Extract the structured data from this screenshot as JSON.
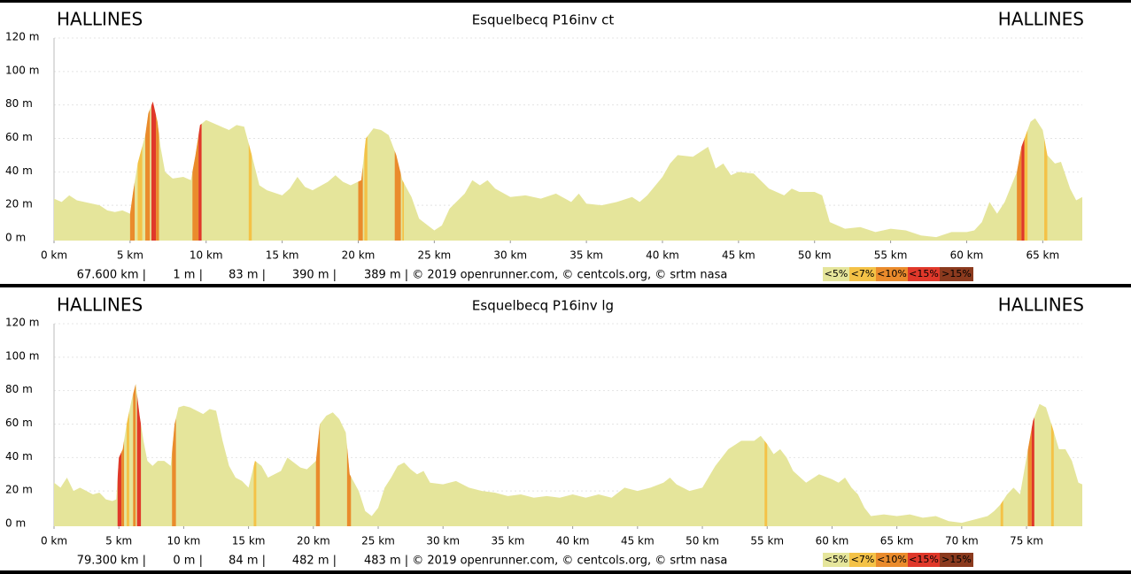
{
  "chart_data": [
    {
      "type": "area",
      "title": "Esquelbecq P16inv ct",
      "start_label": "HALLINES",
      "end_label": "HALLINES",
      "color": "#e5e59b",
      "x": [
        0,
        0.5,
        1,
        1.5,
        2,
        3,
        3.5,
        4,
        4.5,
        5,
        5.2,
        5.5,
        6,
        6.2,
        6.5,
        6.8,
        7,
        7.3,
        7.8,
        8.5,
        9,
        9.3,
        9.6,
        10,
        10.5,
        11,
        11.5,
        12,
        12.5,
        13,
        13.5,
        14,
        15,
        15.5,
        16,
        16.5,
        17,
        18,
        18.5,
        19,
        19.5,
        20.2,
        20.5,
        21,
        21.5,
        22,
        22.5,
        22.9,
        23.5,
        24,
        25,
        25.5,
        26,
        27,
        27.5,
        28,
        28.5,
        29,
        30,
        31,
        32,
        33,
        34,
        34.5,
        35,
        36,
        37,
        38,
        38.5,
        39,
        40,
        40.5,
        41,
        42,
        43,
        43.5,
        44,
        44.5,
        45,
        46,
        47,
        48,
        48.5,
        49,
        50,
        50.5,
        51,
        52,
        53,
        54,
        55,
        56,
        57,
        58,
        59,
        60,
        60.5,
        61,
        61.5,
        62,
        62.5,
        63.3,
        63.6,
        64.2,
        64.5,
        65,
        65.3,
        65.8,
        66.2,
        66.8,
        67.2,
        67.6
      ],
      "values": [
        24,
        22,
        26,
        23,
        22,
        20,
        17,
        16,
        17,
        15,
        28,
        45,
        62,
        75,
        82,
        70,
        55,
        40,
        36,
        37,
        35,
        50,
        68,
        71,
        69,
        67,
        65,
        68,
        67,
        50,
        32,
        29,
        26,
        30,
        37,
        31,
        29,
        34,
        38,
        34,
        32,
        35,
        60,
        66,
        65,
        62,
        50,
        35,
        25,
        12,
        5,
        8,
        18,
        27,
        35,
        32,
        35,
        30,
        25,
        26,
        24,
        27,
        22,
        27,
        21,
        20,
        22,
        25,
        22,
        26,
        37,
        45,
        50,
        49,
        55,
        42,
        45,
        38,
        40,
        39,
        30,
        26,
        30,
        28,
        28,
        26,
        10,
        6,
        7,
        4,
        6,
        5,
        2,
        1,
        4,
        4,
        5,
        10,
        22,
        15,
        22,
        40,
        55,
        70,
        72,
        65,
        50,
        45,
        46,
        30,
        23,
        25
      ],
      "xlim": [
        0,
        67.6
      ],
      "ylim": [
        0,
        120
      ],
      "xticks": [
        {
          "value": 0,
          "label": "0 km"
        },
        {
          "value": 5,
          "label": "5 km"
        },
        {
          "value": 10,
          "label": "10 km"
        },
        {
          "value": 15,
          "label": "15 km"
        },
        {
          "value": 20,
          "label": "20 km"
        },
        {
          "value": 25,
          "label": "25 km"
        },
        {
          "value": 30,
          "label": "30 km"
        },
        {
          "value": 35,
          "label": "35 km"
        },
        {
          "value": 40,
          "label": "40 km"
        },
        {
          "value": 45,
          "label": "45 km"
        },
        {
          "value": 50,
          "label": "50 km"
        },
        {
          "value": 55,
          "label": "55 km"
        },
        {
          "value": 60,
          "label": "60 km"
        },
        {
          "value": 65,
          "label": "65 km"
        }
      ],
      "yticks": [
        {
          "value": 0,
          "label": "0 m"
        },
        {
          "value": 20,
          "label": "20 m"
        },
        {
          "value": 40,
          "label": "40 m"
        },
        {
          "value": 60,
          "label": "60 m"
        },
        {
          "value": 80,
          "label": "80 m"
        },
        {
          "value": 100,
          "label": "100 m"
        },
        {
          "value": 120,
          "label": "120 m"
        }
      ],
      "grid": true,
      "grade_bands": [
        {
          "x0": 5.0,
          "x1": 5.3,
          "level": 2
        },
        {
          "x0": 5.5,
          "x1": 5.8,
          "level": 1
        },
        {
          "x0": 6.0,
          "x1": 6.3,
          "level": 2
        },
        {
          "x0": 6.4,
          "x1": 6.7,
          "level": 3
        },
        {
          "x0": 6.7,
          "x1": 6.9,
          "level": 2
        },
        {
          "x0": 9.1,
          "x1": 9.5,
          "level": 2
        },
        {
          "x0": 9.5,
          "x1": 9.7,
          "level": 3
        },
        {
          "x0": 12.8,
          "x1": 13.0,
          "level": 1
        },
        {
          "x0": 20.0,
          "x1": 20.3,
          "level": 2
        },
        {
          "x0": 20.4,
          "x1": 20.6,
          "level": 1
        },
        {
          "x0": 22.4,
          "x1": 22.8,
          "level": 2
        },
        {
          "x0": 22.9,
          "x1": 23.0,
          "level": 1
        },
        {
          "x0": 63.3,
          "x1": 63.6,
          "level": 2
        },
        {
          "x0": 63.6,
          "x1": 63.8,
          "level": 3
        },
        {
          "x0": 63.8,
          "x1": 64.0,
          "level": 1
        },
        {
          "x0": 65.1,
          "x1": 65.3,
          "level": 1
        }
      ],
      "legend": [
        {
          "label": "<5%",
          "color": "#e5e59b"
        },
        {
          "label": "<7%",
          "color": "#f4c247"
        },
        {
          "label": "<10%",
          "color": "#ea8b2c"
        },
        {
          "label": "<15%",
          "color": "#e0382a"
        },
        {
          "label": ">15%",
          "color": "#8b3a1e"
        }
      ],
      "footer": [
        "67.600 km |",
        "1 m |",
        "83 m |",
        "390 m |",
        "389 m | © 2019 openrunner.com, © centcols.org, © srtm nasa"
      ]
    },
    {
      "type": "area",
      "title": "Esquelbecq P16inv lg",
      "start_label": "HALLINES",
      "end_label": "HALLINES",
      "color": "#e5e59b",
      "x": [
        0,
        0.5,
        1,
        1.5,
        2,
        2.5,
        3,
        3.5,
        4,
        4.5,
        4.8,
        5,
        5.3,
        5.6,
        6,
        6.3,
        6.6,
        6.9,
        7.2,
        7.6,
        8,
        8.5,
        9,
        9.3,
        9.6,
        10,
        10.5,
        11,
        11.5,
        12,
        12.5,
        13,
        13.5,
        14,
        14.5,
        15,
        15.5,
        16,
        16.5,
        17,
        17.5,
        18,
        18.5,
        19,
        19.5,
        20.2,
        20.5,
        21,
        21.5,
        22,
        22.5,
        22.8,
        23.5,
        24,
        24.5,
        25,
        25.5,
        26,
        26.5,
        27,
        27.5,
        28,
        28.5,
        29,
        30,
        31,
        32,
        33,
        34,
        35,
        36,
        37,
        38,
        39,
        40,
        41,
        42,
        43,
        44,
        45,
        46,
        47,
        47.5,
        48,
        49,
        50,
        51,
        52,
        53,
        54,
        54.5,
        55,
        55.5,
        56,
        56.5,
        57,
        58,
        59,
        60,
        60.5,
        61,
        61.5,
        62,
        62.5,
        63,
        64,
        65,
        66,
        67,
        68,
        69,
        70,
        71,
        72,
        72.5,
        73,
        73.5,
        74,
        74.5,
        75,
        75.5,
        76,
        76.5,
        77,
        77.5,
        78,
        78.5,
        79,
        79.3
      ],
      "values": [
        25,
        22,
        28,
        20,
        22,
        20,
        18,
        19,
        15,
        14,
        15,
        40,
        45,
        60,
        75,
        84,
        65,
        50,
        38,
        35,
        38,
        38,
        35,
        60,
        70,
        71,
        70,
        68,
        66,
        69,
        68,
        50,
        35,
        28,
        26,
        22,
        38,
        35,
        28,
        30,
        32,
        40,
        37,
        34,
        33,
        38,
        60,
        65,
        67,
        63,
        55,
        30,
        20,
        8,
        5,
        10,
        22,
        28,
        35,
        37,
        33,
        30,
        32,
        25,
        24,
        26,
        22,
        20,
        19,
        17,
        18,
        16,
        17,
        16,
        18,
        16,
        18,
        16,
        22,
        20,
        22,
        25,
        28,
        24,
        20,
        22,
        35,
        45,
        50,
        50,
        53,
        48,
        42,
        45,
        40,
        32,
        25,
        30,
        27,
        25,
        28,
        22,
        18,
        10,
        5,
        6,
        5,
        6,
        4,
        5,
        2,
        1,
        3,
        5,
        8,
        12,
        18,
        22,
        18,
        40,
        62,
        72,
        70,
        58,
        45,
        45,
        38,
        25,
        24
      ],
      "xlim": [
        0,
        79.3
      ],
      "ylim": [
        0,
        120
      ],
      "xticks": [
        {
          "value": 0,
          "label": "0 km"
        },
        {
          "value": 5,
          "label": "5 km"
        },
        {
          "value": 10,
          "label": "10 km"
        },
        {
          "value": 15,
          "label": "15 km"
        },
        {
          "value": 20,
          "label": "20 km"
        },
        {
          "value": 25,
          "label": "25 km"
        },
        {
          "value": 30,
          "label": "30 km"
        },
        {
          "value": 35,
          "label": "35 km"
        },
        {
          "value": 40,
          "label": "40 km"
        },
        {
          "value": 45,
          "label": "45 km"
        },
        {
          "value": 50,
          "label": "50 km"
        },
        {
          "value": 55,
          "label": "55 km"
        },
        {
          "value": 60,
          "label": "60 km"
        },
        {
          "value": 65,
          "label": "65 km"
        },
        {
          "value": 70,
          "label": "70 km"
        },
        {
          "value": 75,
          "label": "75 km"
        }
      ],
      "yticks": [
        {
          "value": 0,
          "label": "0 m"
        },
        {
          "value": 20,
          "label": "20 m"
        },
        {
          "value": 40,
          "label": "40 m"
        },
        {
          "value": 60,
          "label": "60 m"
        },
        {
          "value": 80,
          "label": "80 m"
        },
        {
          "value": 100,
          "label": "100 m"
        },
        {
          "value": 120,
          "label": "120 m"
        }
      ],
      "grid": true,
      "grade_bands": [
        {
          "x0": 4.9,
          "x1": 5.2,
          "level": 3
        },
        {
          "x0": 5.2,
          "x1": 5.4,
          "level": 2
        },
        {
          "x0": 5.6,
          "x1": 5.8,
          "level": 1
        },
        {
          "x0": 6.1,
          "x1": 6.3,
          "level": 2
        },
        {
          "x0": 6.4,
          "x1": 6.7,
          "level": 3
        },
        {
          "x0": 9.1,
          "x1": 9.4,
          "level": 2
        },
        {
          "x0": 15.4,
          "x1": 15.6,
          "level": 1
        },
        {
          "x0": 20.2,
          "x1": 20.5,
          "level": 2
        },
        {
          "x0": 22.6,
          "x1": 22.9,
          "level": 2
        },
        {
          "x0": 54.8,
          "x1": 55.0,
          "level": 1
        },
        {
          "x0": 73.0,
          "x1": 73.2,
          "level": 1
        },
        {
          "x0": 75.1,
          "x1": 75.4,
          "level": 2
        },
        {
          "x0": 75.4,
          "x1": 75.6,
          "level": 3
        },
        {
          "x0": 76.9,
          "x1": 77.1,
          "level": 1
        }
      ],
      "legend": [
        {
          "label": "<5%",
          "color": "#e5e59b"
        },
        {
          "label": "<7%",
          "color": "#f4c247"
        },
        {
          "label": "<10%",
          "color": "#ea8b2c"
        },
        {
          "label": "<15%",
          "color": "#e0382a"
        },
        {
          "label": ">15%",
          "color": "#8b3a1e"
        }
      ],
      "footer": [
        "79.300 km |",
        "0 m |",
        "84 m |",
        "482 m |",
        "483 m | © 2019 openrunner.com, © centcols.org, © srtm nasa"
      ]
    }
  ]
}
